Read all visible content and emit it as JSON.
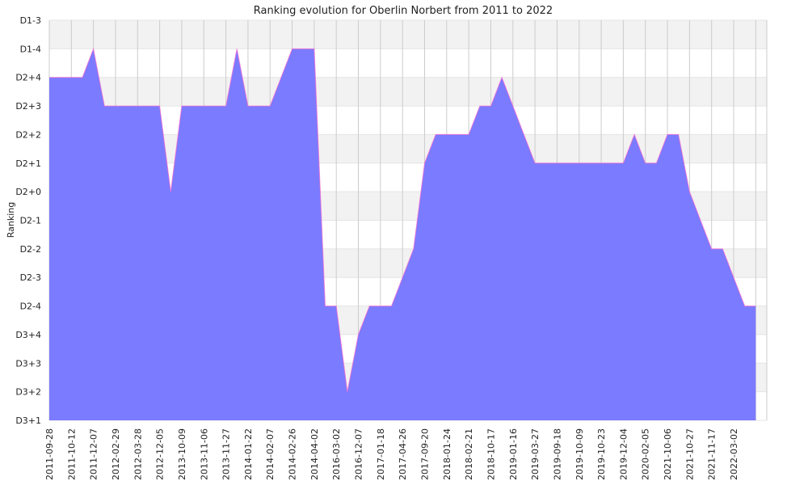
{
  "chart_data": {
    "type": "area",
    "title": "Ranking evolution for Oberlin Norbert from 2011 to 2022",
    "xlabel": "",
    "ylabel": "Ranking",
    "y_ticks": [
      "D1-3",
      "D1-4",
      "D2+4",
      "D2+3",
      "D2+2",
      "D2+1",
      "D2+0",
      "D2-1",
      "D2-2",
      "D2-3",
      "D2-4",
      "D3+4",
      "D3+3",
      "D3+2",
      "D3+1"
    ],
    "x_tick_labels": [
      "2011-09-28",
      "2011-10-12",
      "2011-12-07",
      "2012-02-29",
      "2012-03-28",
      "2012-12-05",
      "2013-10-09",
      "2013-11-06",
      "2013-11-27",
      "2014-01-22",
      "2014-02-07",
      "2014-02-26",
      "2014-04-02",
      "2016-03-02",
      "2016-12-07",
      "2017-01-18",
      "2017-04-26",
      "2017-09-20",
      "2018-01-24",
      "2018-02-21",
      "2018-10-17",
      "2019-01-16",
      "2019-03-27",
      "2019-09-18",
      "2019-10-09",
      "2019-10-23",
      "2019-12-04",
      "2020-02-05",
      "2021-10-06",
      "2021-10-27",
      "2021-11-17",
      "2022-03-02"
    ],
    "series": [
      {
        "values": [
          "D2+4",
          "D2+4",
          "D2+4",
          "D2+4",
          "D1-4",
          "D2+3",
          "D2+3",
          "D2+3",
          "D2+3",
          "D2+3",
          "D2+3",
          "D2+0",
          "D2+3",
          "D2+3",
          "D2+3",
          "D2+3",
          "D2+3",
          "D1-4",
          "D2+3",
          "D2+3",
          "D2+3",
          "D2+4",
          "D1-4",
          "D1-4",
          "D1-4",
          "D2-4",
          "D2-4",
          "D3+2",
          "D3+4",
          "D2-4",
          "D2-4",
          "D2-4",
          "D2-3",
          "D2-2",
          "D2+1",
          "D2+2",
          "D2+2",
          "D2+2",
          "D2+2",
          "D2+3",
          "D2+3",
          "D2+4",
          "D2+3",
          "D2+2",
          "D2+1",
          "D2+1",
          "D2+1",
          "D2+1",
          "D2+1",
          "D2+1",
          "D2+1",
          "D2+1",
          "D2+1",
          "D2+2",
          "D2+1",
          "D2+1",
          "D2+2",
          "D2+2",
          "D2+0",
          "D2-1",
          "D2-2",
          "D2-2",
          "D2-3",
          "D2-4",
          "D2-4"
        ]
      }
    ],
    "legend": "none",
    "grid": true,
    "colors": {
      "fill": "#7b7bff",
      "line": "#ff66cc",
      "band_light": "#f2f2f2",
      "band_white": "#ffffff",
      "grid": "#cccccc"
    }
  }
}
